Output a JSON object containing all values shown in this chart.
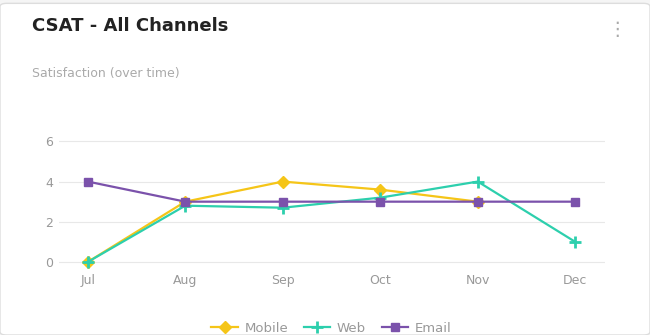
{
  "title": "CSAT - All Channels",
  "subtitle": "Satisfaction (over time)",
  "categories": [
    "Jul",
    "Aug",
    "Sep",
    "Oct",
    "Nov",
    "Dec"
  ],
  "series": {
    "Mobile": {
      "values": [
        0,
        3.0,
        4.0,
        3.6,
        3.0,
        null
      ],
      "color": "#f5c518",
      "marker": "D"
    },
    "Web": {
      "values": [
        0,
        2.8,
        2.7,
        3.2,
        4.0,
        1.0
      ],
      "color": "#2dcfad",
      "marker": "+"
    },
    "Email": {
      "values": [
        4.0,
        3.0,
        3.0,
        3.0,
        3.0,
        3.0
      ],
      "color": "#7b52ab",
      "marker": "s"
    }
  },
  "ylim": [
    -0.3,
    7.2
  ],
  "yticks": [
    0,
    2,
    4,
    6
  ],
  "background_color": "#f5f5f5",
  "card_color": "#ffffff",
  "grid_color": "#e8e8e8",
  "title_fontsize": 13,
  "subtitle_fontsize": 9,
  "subtitle_color": "#aaaaaa",
  "title_color": "#222222",
  "tick_color": "#999999",
  "dots_color": "#aaaaaa"
}
